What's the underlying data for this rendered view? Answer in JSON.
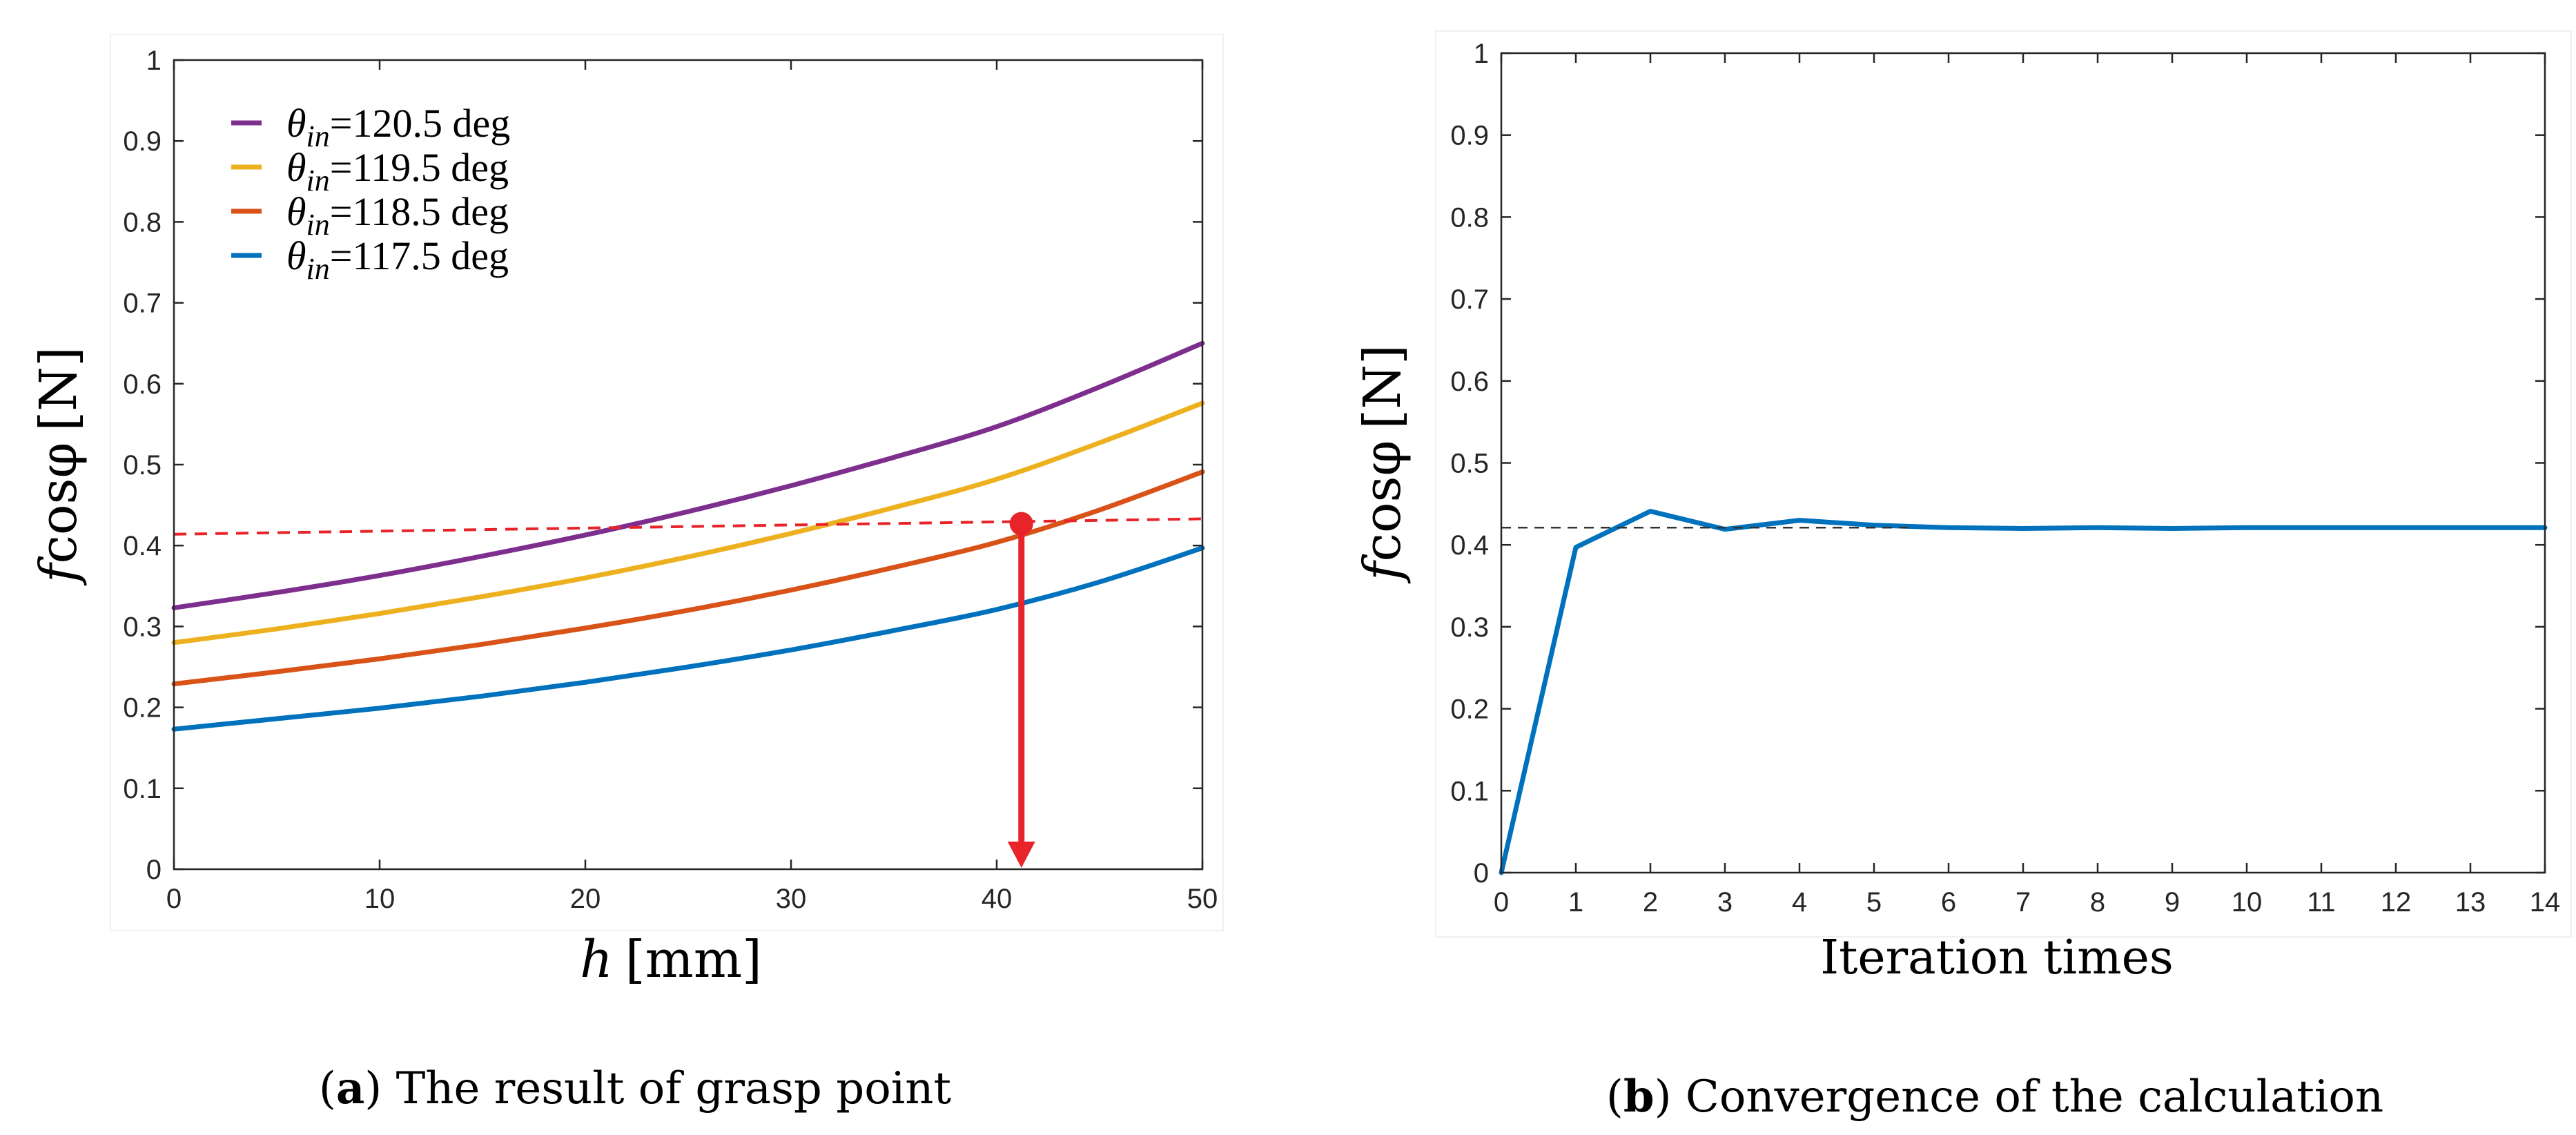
{
  "chart_data": [
    {
      "type": "line",
      "panel": "a",
      "xlabel_var": "h",
      "xlabel_unit": "[mm]",
      "ylabel_var": "f",
      "ylabel_func": "cosφ",
      "ylabel_unit": "[N]",
      "xlim": [
        0,
        50
      ],
      "ylim": [
        0,
        1
      ],
      "x_ticks": [
        "0",
        "10",
        "20",
        "30",
        "40",
        "50"
      ],
      "y_ticks": [
        "0",
        "0.1",
        "0.2",
        "0.3",
        "0.4",
        "0.5",
        "0.6",
        "0.7",
        "0.8",
        "0.9",
        "1"
      ],
      "x": [
        0,
        5,
        10,
        15,
        20,
        25,
        30,
        35,
        40,
        45,
        50
      ],
      "series": [
        {
          "name": "θin=120.5 deg",
          "legend_var": "θ",
          "legend_sub": "in",
          "legend_rest": "=120.5  deg",
          "color": "#7E2F8E",
          "values": [
            0.323,
            0.342,
            0.363,
            0.387,
            0.413,
            0.442,
            0.474,
            0.509,
            0.547,
            0.596,
            0.65
          ]
        },
        {
          "name": "θin=119.5 deg",
          "legend_var": "θ",
          "legend_sub": "in",
          "legend_rest": "=119.5  deg",
          "color": "#EDB120",
          "values": [
            0.28,
            0.297,
            0.316,
            0.337,
            0.36,
            0.386,
            0.415,
            0.447,
            0.482,
            0.527,
            0.576
          ]
        },
        {
          "name": "θin=118.5 deg",
          "legend_var": "θ",
          "legend_sub": "in",
          "legend_rest": "=118.5  deg",
          "color": "#D95319",
          "values": [
            0.229,
            0.244,
            0.26,
            0.278,
            0.298,
            0.32,
            0.345,
            0.373,
            0.404,
            0.444,
            0.491
          ]
        },
        {
          "name": "θin=117.5 deg",
          "legend_var": "θ",
          "legend_sub": "in",
          "legend_rest": "=117.5  deg",
          "color": "#0072BD",
          "values": [
            0.173,
            0.186,
            0.199,
            0.214,
            0.231,
            0.25,
            0.271,
            0.295,
            0.321,
            0.355,
            0.397
          ]
        }
      ],
      "reference_line": {
        "x": [
          0,
          50
        ],
        "y": [
          0.414,
          0.433
        ],
        "color": "#E8242B",
        "style": "dashed"
      },
      "marker": {
        "x": 41.2,
        "y": 0.427,
        "color": "#E8242B"
      },
      "arrow": {
        "x": 41.2,
        "from_y": 0.427,
        "to_y": 0.0,
        "color": "#E8242B"
      },
      "caption_letter": "a",
      "caption_text": ") The result of grasp point",
      "caption_open": "("
    },
    {
      "type": "line",
      "panel": "b",
      "xlabel": "Iteration times",
      "ylabel_var": "f",
      "ylabel_func": "cosφ",
      "ylabel_unit": "[N]",
      "xlim": [
        0,
        14
      ],
      "ylim": [
        0,
        1
      ],
      "x_ticks": [
        "0",
        "1",
        "2",
        "3",
        "4",
        "5",
        "6",
        "7",
        "8",
        "9",
        "10",
        "11",
        "12",
        "13",
        "14"
      ],
      "y_ticks": [
        "0",
        "0.1",
        "0.2",
        "0.3",
        "0.4",
        "0.5",
        "0.6",
        "0.7",
        "0.8",
        "0.9",
        "1"
      ],
      "series": [
        {
          "name": "fcosφ",
          "color": "#0072BD",
          "x": [
            0,
            1,
            2,
            3,
            4,
            5,
            6,
            7,
            8,
            9,
            10,
            11,
            12,
            13,
            14
          ],
          "values": [
            0.0,
            0.397,
            0.441,
            0.419,
            0.43,
            0.424,
            0.421,
            0.42,
            0.421,
            0.42,
            0.421,
            0.421,
            0.421,
            0.421,
            0.421
          ]
        }
      ],
      "reference_line": {
        "x": [
          0,
          5.5
        ],
        "y": [
          0.421,
          0.421
        ],
        "color": "#333333",
        "style": "dashed"
      },
      "caption_letter": "b",
      "caption_text": ") Convergence of the calculation",
      "caption_open": "("
    }
  ]
}
